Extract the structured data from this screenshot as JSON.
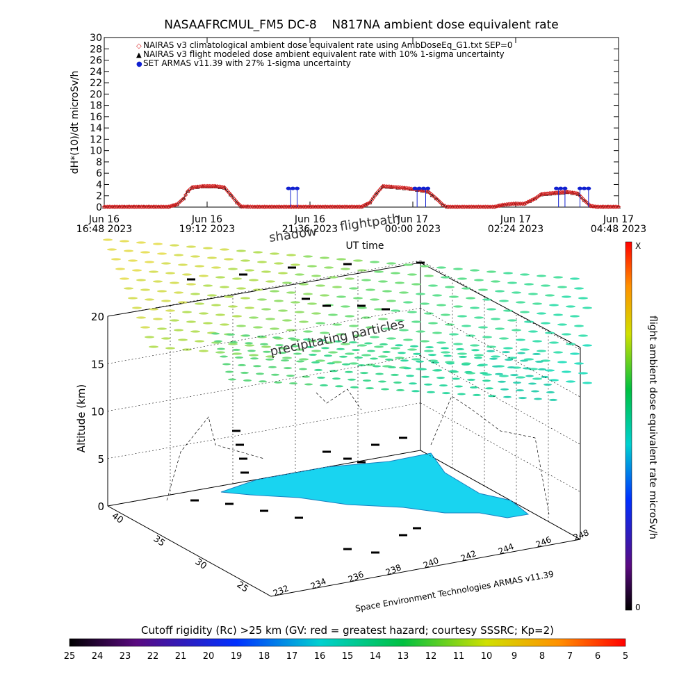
{
  "chart_data": [
    {
      "type": "line",
      "title": "NASAAFRCMUL_FM5 DC-8    N817NA ambient dose equivalent rate",
      "ylabel": "dH*(10)/dt microSv/h",
      "xlabel": "UT time",
      "ylim": [
        0,
        30
      ],
      "yticks": [
        0,
        2,
        4,
        6,
        8,
        10,
        12,
        14,
        16,
        18,
        20,
        22,
        24,
        26,
        28,
        30
      ],
      "xlim_hours": [
        0,
        12
      ],
      "xticks": [
        {
          "h": 0,
          "line1": "Jun 16",
          "line2": "16:48 2023"
        },
        {
          "h": 2.4,
          "line1": "Jun 16",
          "line2": "19:12 2023"
        },
        {
          "h": 4.8,
          "line1": "Jun 16",
          "line2": "21:36 2023"
        },
        {
          "h": 7.2,
          "line1": "Jun 17",
          "line2": "00:00 2023"
        },
        {
          "h": 9.6,
          "line1": "Jun 17",
          "line2": "02:24 2023"
        },
        {
          "h": 12,
          "line1": "Jun 17",
          "line2": "04:48 2023"
        }
      ],
      "legend": [
        {
          "symbol": "◇",
          "color": "#d62020",
          "label": "NAIRAS v3 climatological ambient dose equivalent rate using AmbDoseEq_G1.txt SEP=0"
        },
        {
          "symbol": "▲",
          "color": "#000000",
          "label": "NAIRAS v3 flight modeled dose ambient equivalent rate with 10% 1-sigma uncertainty"
        },
        {
          "symbol": "●",
          "color": "#1020d0",
          "label": "SET ARMAS v11.39 with 27% 1-sigma uncertainty"
        }
      ],
      "legend_position": "top-left",
      "series": [
        {
          "name": "NAIRAS v3 climatological ambient dose equivalent rate using AmbDoseEq_G1.txt SEP=0",
          "color": "#d62020",
          "points": [
            [
              0.0,
              0.05
            ],
            [
              1.5,
              0.05
            ],
            [
              1.7,
              0.5
            ],
            [
              1.85,
              1.5
            ],
            [
              1.95,
              2.8
            ],
            [
              2.05,
              3.5
            ],
            [
              2.3,
              3.7
            ],
            [
              2.6,
              3.7
            ],
            [
              2.8,
              3.5
            ],
            [
              2.95,
              2.2
            ],
            [
              3.1,
              0.8
            ],
            [
              3.2,
              0.1
            ],
            [
              3.5,
              0.05
            ],
            [
              6.0,
              0.05
            ],
            [
              6.2,
              0.8
            ],
            [
              6.35,
              2.4
            ],
            [
              6.5,
              3.7
            ],
            [
              6.7,
              3.6
            ],
            [
              7.0,
              3.4
            ],
            [
              7.3,
              3.1
            ],
            [
              7.55,
              2.8
            ],
            [
              7.75,
              1.5
            ],
            [
              7.9,
              0.4
            ],
            [
              8.0,
              0.05
            ],
            [
              9.1,
              0.05
            ],
            [
              9.3,
              0.4
            ],
            [
              9.55,
              0.6
            ],
            [
              9.8,
              0.6
            ],
            [
              10.05,
              1.5
            ],
            [
              10.2,
              2.3
            ],
            [
              10.5,
              2.5
            ],
            [
              10.8,
              2.7
            ],
            [
              11.05,
              2.4
            ],
            [
              11.2,
              1.2
            ],
            [
              11.35,
              0.2
            ],
            [
              11.5,
              0.05
            ],
            [
              12.0,
              0.05
            ]
          ]
        },
        {
          "name": "NAIRAS v3 flight modeled dose ambient equivalent rate with 10% 1-sigma uncertainty",
          "color": "#000000",
          "points": [
            [
              0.0,
              0.05
            ],
            [
              1.5,
              0.05
            ],
            [
              1.7,
              0.5
            ],
            [
              1.85,
              1.5
            ],
            [
              1.95,
              2.8
            ],
            [
              2.05,
              3.4
            ],
            [
              2.3,
              3.6
            ],
            [
              2.6,
              3.6
            ],
            [
              2.8,
              3.4
            ],
            [
              2.95,
              2.2
            ],
            [
              3.1,
              0.8
            ],
            [
              3.2,
              0.1
            ],
            [
              3.5,
              0.05
            ],
            [
              6.0,
              0.05
            ],
            [
              6.2,
              0.8
            ],
            [
              6.35,
              2.4
            ],
            [
              6.5,
              3.6
            ],
            [
              6.7,
              3.5
            ],
            [
              7.0,
              3.3
            ],
            [
              7.3,
              3.0
            ],
            [
              7.55,
              2.7
            ],
            [
              7.75,
              1.5
            ],
            [
              7.9,
              0.4
            ],
            [
              8.0,
              0.05
            ],
            [
              9.1,
              0.05
            ],
            [
              9.3,
              0.4
            ],
            [
              9.55,
              0.6
            ],
            [
              9.8,
              0.6
            ],
            [
              10.05,
              1.5
            ],
            [
              10.2,
              2.2
            ],
            [
              10.5,
              2.4
            ],
            [
              10.8,
              2.6
            ],
            [
              11.05,
              2.3
            ],
            [
              11.2,
              1.2
            ],
            [
              11.35,
              0.2
            ],
            [
              11.5,
              0.05
            ],
            [
              12.0,
              0.05
            ]
          ]
        },
        {
          "name": "SET ARMAS v11.39 with 27% 1-sigma uncertainty",
          "color": "#1020d0",
          "points": [
            [
              4.3,
              3.3
            ],
            [
              4.4,
              3.3
            ],
            [
              4.5,
              3.3
            ],
            [
              7.25,
              3.3
            ],
            [
              7.35,
              3.3
            ],
            [
              7.45,
              3.3
            ],
            [
              7.55,
              3.3
            ],
            [
              10.55,
              3.3
            ],
            [
              10.65,
              3.3
            ],
            [
              10.75,
              3.3
            ],
            [
              11.1,
              3.3
            ],
            [
              11.2,
              3.3
            ],
            [
              11.3,
              3.3
            ]
          ],
          "drops": [
            [
              4.35,
              0
            ],
            [
              4.5,
              0
            ],
            [
              7.3,
              0
            ],
            [
              7.5,
              0
            ],
            [
              10.6,
              0
            ],
            [
              10.75,
              0
            ],
            [
              11.1,
              0
            ],
            [
              11.3,
              0
            ]
          ]
        }
      ]
    },
    {
      "type": "scatter",
      "zlabel": "Altitude (km)",
      "zticks": [
        0,
        5,
        10,
        15,
        20
      ],
      "lat_ticks": [
        "40",
        "35",
        "30",
        "25"
      ],
      "lon_ticks": [
        "232",
        "234",
        "236",
        "238",
        "240",
        "242",
        "244",
        "246",
        "248"
      ],
      "annotations": [
        "shadow",
        "flightpath",
        "precipitating particles"
      ],
      "credit": "Space Environment Technologies ARMAS v11.39"
    }
  ],
  "colorbar_right": {
    "label": "flight ambient dose equivalent rate microSv/h",
    "top_label": "X",
    "bottom_label": "0"
  },
  "colorbar_bottom": {
    "title": "Cutoff rigidity (Rc) >25 km (GV: red = greatest hazard; courtesy SSSRC; Kp=2)",
    "ticks": [
      "25",
      "24",
      "23",
      "22",
      "21",
      "20",
      "19",
      "18",
      "17",
      "16",
      "15",
      "14",
      "13",
      "12",
      "11",
      "10",
      "9",
      "8",
      "7",
      "6",
      "5"
    ]
  }
}
